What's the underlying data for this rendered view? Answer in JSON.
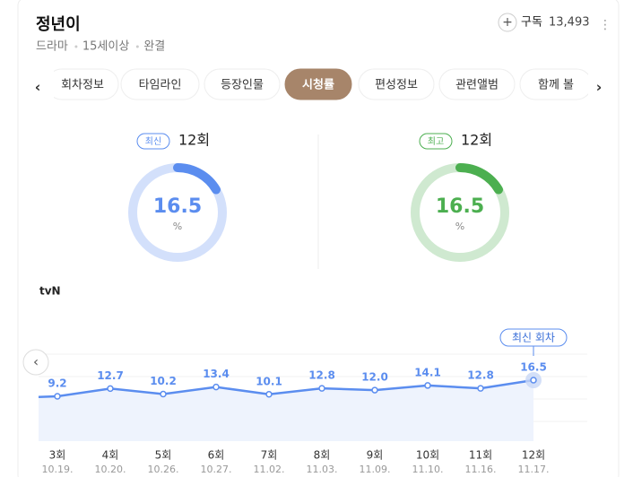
{
  "header": {
    "title": "정년이",
    "meta": [
      "드라마",
      "15세이상",
      "완결"
    ],
    "subscribe_label": "구독",
    "subscribe_count": "13,493"
  },
  "tabs": {
    "items": [
      "회차정보",
      "타임라인",
      "등장인물",
      "시청률",
      "편성정보",
      "관련앨범",
      "함께 볼"
    ],
    "active": 3
  },
  "cards": [
    {
      "badge": "최신",
      "episode": "12회",
      "value": 16.5,
      "unit": "%",
      "color": "#5b8def",
      "track": "#d3e0fb"
    },
    {
      "badge": "최고",
      "episode": "12회",
      "value": 16.5,
      "unit": "%",
      "color": "#4caf50",
      "track": "#cfe9d0"
    }
  ],
  "ratings_chart": {
    "type": "line",
    "channel": "tvN",
    "badge": "최신 회차",
    "color": "#5b8def",
    "categories": [
      "3회",
      "4회",
      "5회",
      "6회",
      "7회",
      "8회",
      "9회",
      "10회",
      "11회",
      "12회"
    ],
    "dates": [
      "10.19.",
      "10.20.",
      "10.26.",
      "10.27.",
      "11.02.",
      "11.03.",
      "11.09.",
      "11.10.",
      "11.16.",
      "11.17."
    ],
    "values": [
      9.2,
      12.7,
      10.2,
      13.4,
      10.1,
      12.8,
      12.0,
      14.1,
      12.8,
      16.5
    ],
    "value_labels": [
      "9.2",
      "12.7",
      "10.2",
      "13.4",
      "10.1",
      "12.8",
      "12.0",
      "14.1",
      "12.8",
      "16.5"
    ]
  }
}
